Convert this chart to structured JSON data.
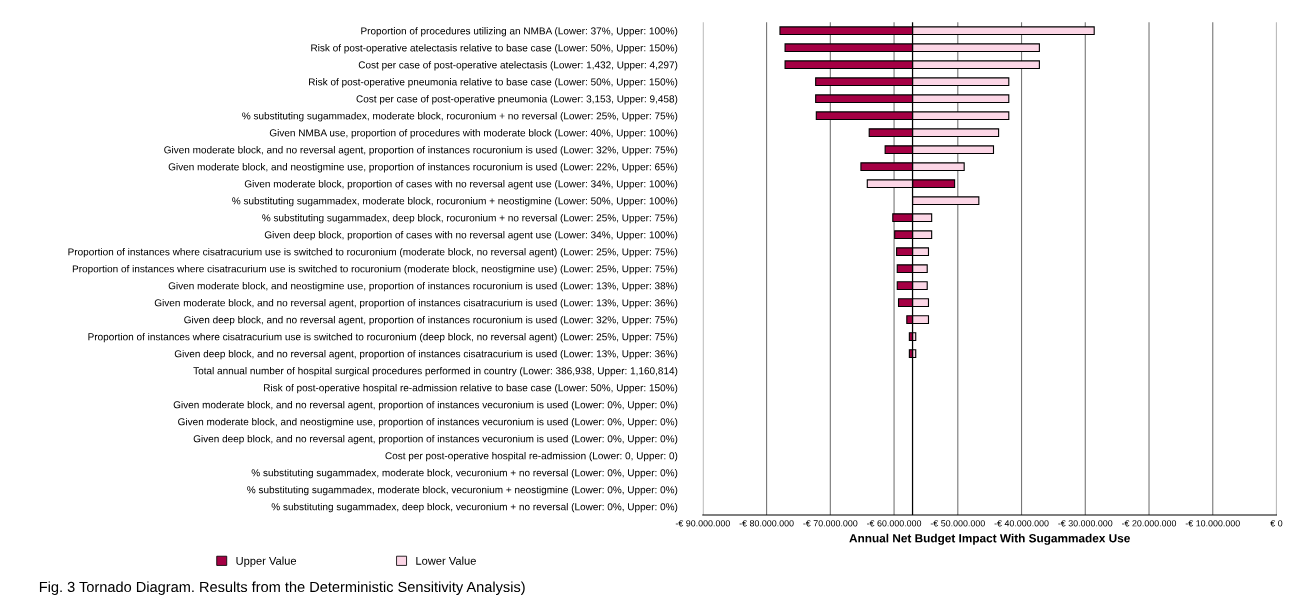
{
  "chart_data": {
    "type": "bar",
    "orientation": "horizontal",
    "title": "Fig. 3 Tornado Diagram. Results from the Deterministic Sensitivity Analysis)",
    "xlabel": "Annual Net Budget Impact With Sugammadex Use",
    "categories": [
      "Proportion of procedures utilizing an NMBA (Lower: 37%, Upper: 100%)",
      "Risk of post-operative atelectasis relative to base case (Lower: 50%, Upper: 150%)",
      "Cost per case of post-operative atelectasis (Lower: 1,432, Upper: 4,297)",
      "Risk of post-operative pneumonia relative to base case (Lower: 50%, Upper: 150%)",
      "Cost per case of post-operative pneumonia (Lower: 3,153, Upper: 9,458)",
      "% substituting sugammadex, moderate block, rocuronium + no reversal (Lower: 25%, Upper: 75%)",
      "Given NMBA use, proportion of procedures with moderate block (Lower: 40%, Upper: 100%)",
      "Given moderate block, and no reversal agent, proportion of instances rocuronium is used (Lower: 32%, Upper: 75%)",
      "Given moderate block, and neostigmine use, proportion of instances rocuronium is used (Lower: 22%, Upper: 65%)",
      "Given moderate block, proportion of cases with no reversal agent use (Lower: 34%, Upper: 100%)",
      "% substituting sugammadex, moderate block, rocuronium + neostigmine (Lower: 50%, Upper: 100%)",
      "% substituting sugammadex, deep block, rocuronium + no reversal (Lower: 25%, Upper: 75%)",
      "Given deep block, proportion of cases with no reversal agent use (Lower: 34%, Upper: 100%)",
      "Proportion of instances where cisatracurium use is switched to rocuronium (moderate block, no reversal agent) (Lower: 25%, Upper: 75%)",
      "Proportion of instances where cisatracurium use is switched to rocuronium (moderate block, neostigmine use) (Lower: 25%, Upper: 75%)",
      "Given moderate block, and neostigmine use, proportion of instances rocuronium is used (Lower: 13%, Upper: 38%)",
      "Given moderate block, and no reversal agent, proportion of instances cisatracurium is used (Lower: 13%, Upper: 36%)",
      "Given deep block, and no reversal agent, proportion of instances rocuronium is used (Lower: 32%, Upper: 75%)",
      "Proportion of instances where cisatracurium use is switched to rocuronium (deep block, no reversal agent) (Lower: 25%, Upper: 75%)",
      "Given deep block, and no reversal agent, proportion of instances cisatracurium is used (Lower: 13%, Upper: 36%)",
      "Total annual number of hospital surgical procedures performed in country (Lower: 386,938, Upper: 1,160,814)",
      "Risk of post-operative hospital re-admission relative to base case (Lower: 50%, Upper: 150%)",
      "Given moderate block, and no reversal agent, proportion of instances vecuronium is used (Lower: 0%, Upper: 0%)",
      "Given moderate block, and neostigmine use, proportion of instances vecuronium is used (Lower: 0%, Upper: 0%)",
      "Given deep block, and no reversal agent, proportion of instances vecuronium is used (Lower: 0%, Upper: 0%)",
      "Cost per post-operative hospital re-admission (Lower: 0, Upper: 0)",
      "% substituting sugammadex, moderate block, vecuronium + no reversal (Lower: 0%, Upper: 0%)",
      "% substituting sugammadex, moderate block, vecuronium + neostigmine (Lower: 0%, Upper: 0%)",
      "% substituting sugammadex, deep block, vecuronium + no reversal (Lower: 0%, Upper: 0%)"
    ],
    "series": [
      {
        "name": "Upper Value",
        "color": "#a50044",
        "base": [
          -57100000,
          -57100000,
          -57100000,
          -57100000,
          -57100000,
          -57100000,
          -57100000,
          -57100000,
          -57100000,
          -57100000,
          null,
          -57100000,
          -57100000,
          -57100000,
          -57100000,
          -57100000,
          -57100000,
          -57100000,
          -57100000,
          -57100000,
          null,
          null,
          null,
          null,
          null,
          null,
          null,
          null,
          null
        ],
        "values": [
          -20800000,
          -20000000,
          -20000000,
          -15200000,
          -15200000,
          -15100000,
          -6800000,
          -4300000,
          -8100000,
          6600000,
          null,
          -3100000,
          -2800000,
          -2500000,
          -2400000,
          -2400000,
          -2200000,
          -900000,
          -500000,
          -500000,
          null,
          null,
          null,
          null,
          null,
          null,
          null,
          null,
          null
        ]
      },
      {
        "name": "Lower Value",
        "color": "#fcd6e6",
        "base": [
          -57100000,
          -57100000,
          -57100000,
          -57100000,
          -57100000,
          -57100000,
          -57100000,
          -57100000,
          -57100000,
          -57100000,
          -57100000,
          -57100000,
          -57100000,
          -57100000,
          -57100000,
          -57100000,
          -57100000,
          -57100000,
          -57100000,
          -57100000,
          null,
          null,
          null,
          null,
          null,
          null,
          null,
          null,
          null
        ],
        "values": [
          28500000,
          19900000,
          19900000,
          15100000,
          15100000,
          15100000,
          13500000,
          12700000,
          8100000,
          -7100000,
          10400000,
          3000000,
          3000000,
          2500000,
          2300000,
          2300000,
          2500000,
          2500000,
          500000,
          500000,
          null,
          null,
          null,
          null,
          null,
          null,
          null,
          null,
          null
        ]
      }
    ],
    "xlim": [
      -90000000,
      0
    ],
    "xticks": [
      {
        "value": -90000000,
        "label": "-€ 90.000.000"
      },
      {
        "value": -80000000,
        "label": "-€ 80.000.000"
      },
      {
        "value": -70000000,
        "label": "-€ 70.000.000"
      },
      {
        "value": -60000000,
        "label": "-€ 60.000.000"
      },
      {
        "value": -50000000,
        "label": "-€ 50.000.000"
      },
      {
        "value": -40000000,
        "label": "-€ 40.000.000"
      },
      {
        "value": -30000000,
        "label": "-€ 30.000.000"
      },
      {
        "value": -20000000,
        "label": "-€ 20.000.000"
      },
      {
        "value": -10000000,
        "label": "-€ 10.000.000"
      },
      {
        "value": 0,
        "label": "€ 0"
      }
    ],
    "ref_lines": [
      {
        "axis": "x",
        "value": -57100000,
        "color": "#000000"
      }
    ],
    "grid": "x",
    "legend": "bottom left"
  }
}
